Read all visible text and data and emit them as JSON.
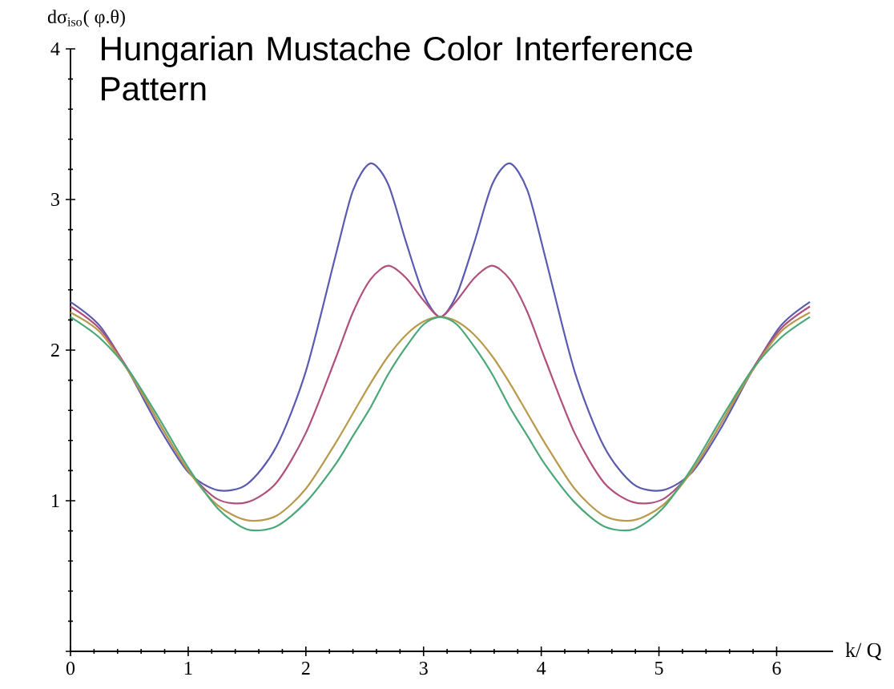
{
  "chart_data": {
    "type": "line",
    "title": "Hungarian Mustache Color Interference Pattern",
    "xlabel": "k/ Q",
    "ylabel": "dσ$_{iso}$( φ.θ)",
    "x": [
      0,
      0.25,
      0.5,
      0.75,
      1,
      1.25,
      1.5,
      1.75,
      2,
      2.25,
      2.4,
      2.55,
      2.7,
      2.85,
      3.0,
      3.142,
      3.283,
      3.433,
      3.583,
      3.733,
      3.883,
      4.033,
      4.283,
      4.533,
      4.783,
      5.033,
      5.283,
      5.533,
      5.783,
      6.033,
      6.283
    ],
    "series": [
      {
        "color": "#5a5ab0",
        "values": [
          2.32,
          2.16,
          1.85,
          1.49,
          1.19,
          1.07,
          1.11,
          1.36,
          1.86,
          2.62,
          3.06,
          3.24,
          3.1,
          2.72,
          2.37,
          2.22,
          2.37,
          2.72,
          3.1,
          3.24,
          3.06,
          2.62,
          1.86,
          1.36,
          1.11,
          1.07,
          1.19,
          1.49,
          1.85,
          2.16,
          2.32
        ]
      },
      {
        "color": "#b0507e",
        "values": [
          2.29,
          2.14,
          1.86,
          1.52,
          1.2,
          1.01,
          0.99,
          1.12,
          1.45,
          1.94,
          2.25,
          2.47,
          2.56,
          2.48,
          2.33,
          2.22,
          2.33,
          2.48,
          2.56,
          2.47,
          2.25,
          1.94,
          1.45,
          1.12,
          0.99,
          1.01,
          1.2,
          1.52,
          1.86,
          2.14,
          2.29
        ]
      },
      {
        "color": "#b89a4a",
        "values": [
          2.25,
          2.12,
          1.85,
          1.52,
          1.2,
          0.97,
          0.87,
          0.9,
          1.08,
          1.38,
          1.58,
          1.78,
          1.96,
          2.1,
          2.19,
          2.22,
          2.19,
          2.1,
          1.96,
          1.78,
          1.58,
          1.38,
          1.08,
          0.9,
          0.87,
          0.97,
          1.2,
          1.52,
          1.85,
          2.12,
          2.25
        ]
      },
      {
        "color": "#4aa878",
        "values": [
          2.22,
          2.08,
          1.86,
          1.55,
          1.22,
          0.95,
          0.81,
          0.83,
          0.99,
          1.24,
          1.43,
          1.62,
          1.84,
          2.02,
          2.17,
          2.22,
          2.17,
          2.02,
          1.84,
          1.62,
          1.43,
          1.24,
          0.99,
          0.83,
          0.81,
          0.95,
          1.22,
          1.55,
          1.86,
          2.08,
          2.22
        ]
      }
    ],
    "xlim": [
      0,
      6.48
    ],
    "ylim": [
      0,
      4
    ],
    "xticks": [
      0,
      1,
      2,
      3,
      4,
      5,
      6
    ],
    "yticks": [
      {
        "value": 0,
        "label": null
      },
      1,
      2,
      3,
      4
    ],
    "grid": false,
    "marker": "none",
    "line_style": "solid"
  }
}
